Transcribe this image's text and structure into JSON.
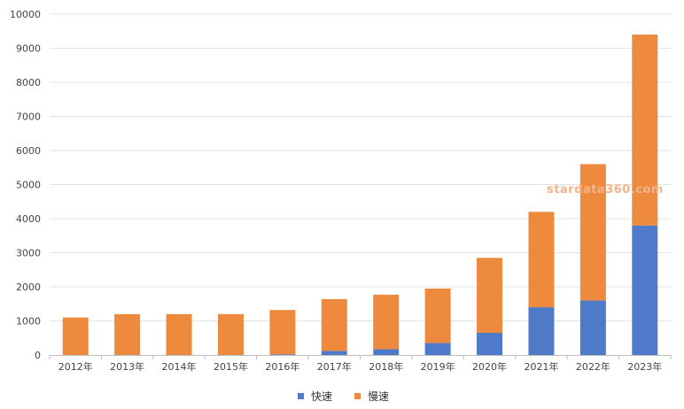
{
  "chart_data": {
    "type": "bar",
    "stacked": true,
    "categories": [
      "2012年",
      "2013年",
      "2014年",
      "2015年",
      "2016年",
      "2017年",
      "2018年",
      "2019年",
      "2020年",
      "2021年",
      "2022年",
      "2023年"
    ],
    "series": [
      {
        "name": "快速",
        "color": "#4f7ac7",
        "values": [
          0,
          0,
          0,
          0,
          20,
          120,
          170,
          350,
          650,
          1400,
          1600,
          3800
        ]
      },
      {
        "name": "慢速",
        "color": "#ed8a3e",
        "values": [
          1100,
          1200,
          1200,
          1200,
          1300,
          1520,
          1600,
          1600,
          2200,
          2800,
          4000,
          5600
        ]
      }
    ],
    "ylim": [
      0,
      10000
    ],
    "yticks": [
      0,
      1000,
      2000,
      3000,
      4000,
      5000,
      6000,
      7000,
      8000,
      9000,
      10000
    ],
    "grid": true,
    "legend": "bottom",
    "watermark": "stardata360.com"
  }
}
